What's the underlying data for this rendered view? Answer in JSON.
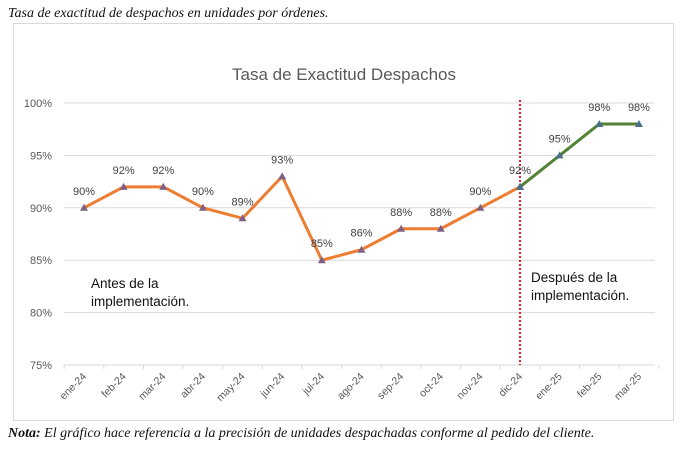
{
  "caption": "Tasa de exactitud de despachos en unidades por órdenes.",
  "note": {
    "label": "Nota:",
    "text": " El gráfico hace referencia a la precisión de unidades despachadas conforme al pedido del cliente."
  },
  "chart_data": {
    "type": "line",
    "title": "Tasa de Exactitud Despachos",
    "xlabel": "",
    "ylabel": "",
    "ylim": [
      75,
      100
    ],
    "yticks": [
      75,
      80,
      85,
      90,
      95,
      100
    ],
    "ytick_labels": [
      "75%",
      "80%",
      "85%",
      "90%",
      "95%",
      "100%"
    ],
    "grid": true,
    "legend": "none",
    "categories": [
      "ene-24",
      "feb-24",
      "mar-24",
      "abr-24",
      "may-24",
      "jun-24",
      "jul-24",
      "ago-24",
      "sep-24",
      "oct-24",
      "nov-24",
      "dic-24",
      "ene-25",
      "feb-25",
      "mar-25"
    ],
    "series": [
      {
        "name": "Antes de la implementación",
        "color": "#ED7D31",
        "marker_color": "#7F6084",
        "categories": [
          "ene-24",
          "feb-24",
          "mar-24",
          "abr-24",
          "may-24",
          "jun-24",
          "jul-24",
          "ago-24",
          "sep-24",
          "oct-24",
          "nov-24",
          "dic-24"
        ],
        "values": [
          90,
          92,
          92,
          90,
          89,
          93,
          85,
          86,
          88,
          88,
          90,
          92
        ],
        "data_labels": [
          "90%",
          "92%",
          "92%",
          "90%",
          "89%",
          "93%",
          "85%",
          "86%",
          "88%",
          "88%",
          "90%",
          "92%"
        ]
      },
      {
        "name": "Después de la implementación",
        "color": "#548235",
        "marker_color": "#4A6F8A",
        "categories": [
          "dic-24",
          "ene-25",
          "feb-25",
          "mar-25"
        ],
        "values": [
          92,
          95,
          98,
          98
        ],
        "data_labels": [
          "",
          "95%",
          "98%",
          "98%"
        ]
      }
    ],
    "divider": {
      "at_category": "dic-24",
      "style": "dotted",
      "color": "#E0202A"
    },
    "annotations": [
      {
        "lines": [
          "Antes de la",
          "implementación."
        ],
        "region": "left"
      },
      {
        "lines": [
          "Después de la",
          "implementación."
        ],
        "region": "right"
      }
    ],
    "colors": {
      "grid": "#D9D9D9",
      "axis_text": "#595959",
      "title": "#595959"
    }
  }
}
